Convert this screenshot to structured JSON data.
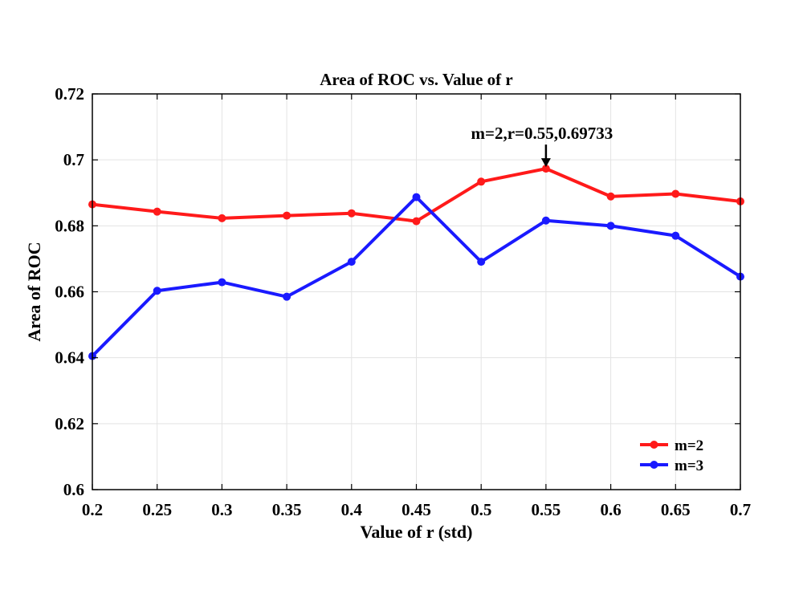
{
  "chart_data": {
    "type": "line",
    "title": "Area of ROC vs. Value of r",
    "xlabel": "Value of r (std)",
    "ylabel": "Area of ROC",
    "x": [
      0.2,
      0.25,
      0.3,
      0.35,
      0.4,
      0.45,
      0.5,
      0.55,
      0.6,
      0.65,
      0.7
    ],
    "x_tick_labels": [
      "0.2",
      "0.25",
      "0.3",
      "0.35",
      "0.4",
      "0.45",
      "0.5",
      "0.55",
      "0.6",
      "0.65",
      "0.7"
    ],
    "y_ticks": [
      0.6,
      0.62,
      0.64,
      0.66,
      0.68,
      0.7,
      0.72
    ],
    "y_tick_labels": [
      "0.6",
      "0.62",
      "0.64",
      "0.66",
      "0.68",
      "0.7",
      "0.72"
    ],
    "xlim": [
      0.2,
      0.7
    ],
    "ylim": [
      0.6,
      0.72
    ],
    "grid": true,
    "legend_position": "bottom-right",
    "series": [
      {
        "name": "m=2",
        "color": "#ff1a1a",
        "values": [
          0.6865,
          0.6843,
          0.6823,
          0.6831,
          0.6838,
          0.6814,
          0.6934,
          0.69733,
          0.6889,
          0.6897,
          0.6874
        ]
      },
      {
        "name": "m=3",
        "color": "#1a1aff",
        "values": [
          0.6405,
          0.6603,
          0.6629,
          0.6585,
          0.6691,
          0.6887,
          0.6691,
          0.6816,
          0.68,
          0.677,
          0.6646
        ]
      }
    ],
    "annotations": [
      {
        "text": "m=2,r=0.55,0.69733",
        "x": 0.55,
        "y": 0.69733
      }
    ]
  }
}
